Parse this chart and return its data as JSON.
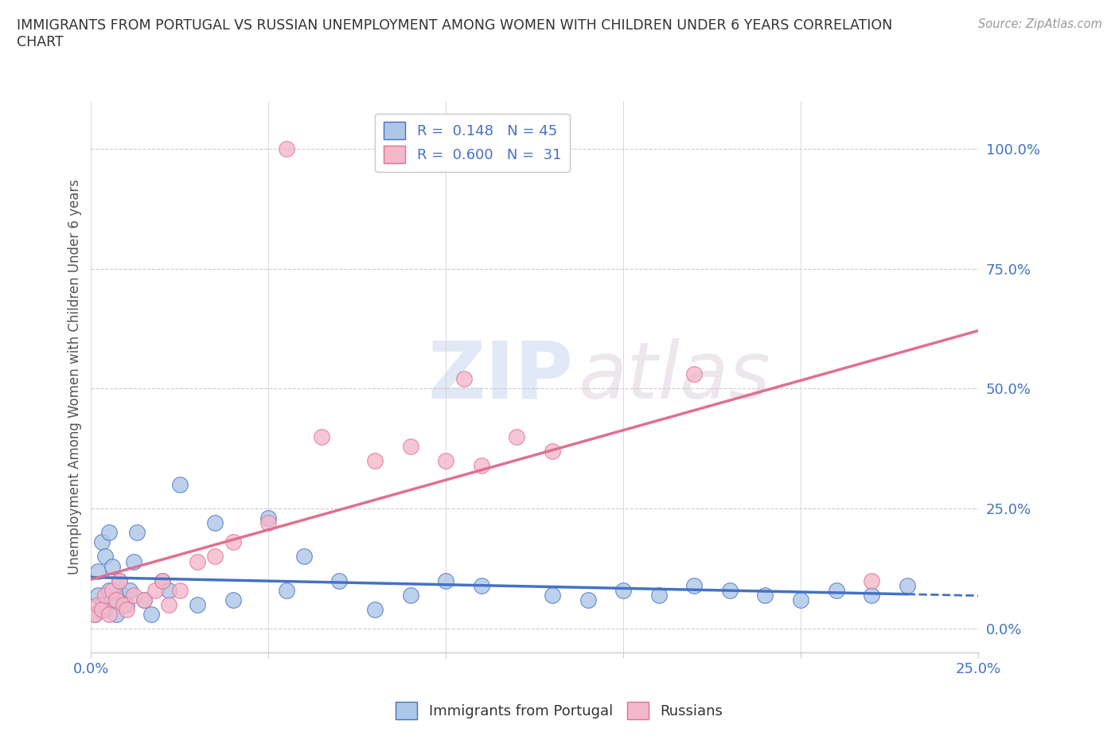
{
  "title": "IMMIGRANTS FROM PORTUGAL VS RUSSIAN UNEMPLOYMENT AMONG WOMEN WITH CHILDREN UNDER 6 YEARS CORRELATION\nCHART",
  "source": "Source: ZipAtlas.com",
  "ylabel": "Unemployment Among Women with Children Under 6 years",
  "xlim": [
    0.0,
    0.25
  ],
  "ylim": [
    -0.05,
    1.1
  ],
  "xticks": [
    0.0,
    0.05,
    0.1,
    0.15,
    0.2,
    0.25
  ],
  "xtick_labels": [
    "0.0%",
    "",
    "",
    "",
    "",
    "25.0%"
  ],
  "ytick_positions": [
    0.0,
    0.25,
    0.5,
    0.75,
    1.0
  ],
  "ytick_labels": [
    "0.0%",
    "25.0%",
    "50.0%",
    "75.0%",
    "100.0%"
  ],
  "blue_color": "#aec6e8",
  "blue_edge_color": "#4472c4",
  "blue_line_color": "#4472c4",
  "pink_color": "#f4b8cb",
  "pink_edge_color": "#e07090",
  "pink_line_color": "#e07090",
  "legend_blue_label": "R =  0.148   N = 45",
  "legend_pink_label": "R =  0.600   N =  31",
  "watermark_zip": "ZIP",
  "watermark_atlas": "atlas",
  "bottom_legend_blue": "Immigrants from Portugal",
  "bottom_legend_pink": "Russians",
  "blue_scatter_x": [
    0.001,
    0.002,
    0.002,
    0.003,
    0.003,
    0.004,
    0.004,
    0.005,
    0.005,
    0.006,
    0.006,
    0.007,
    0.008,
    0.009,
    0.01,
    0.011,
    0.012,
    0.013,
    0.015,
    0.017,
    0.02,
    0.022,
    0.025,
    0.03,
    0.035,
    0.04,
    0.05,
    0.055,
    0.06,
    0.07,
    0.08,
    0.09,
    0.1,
    0.11,
    0.13,
    0.14,
    0.15,
    0.16,
    0.17,
    0.18,
    0.19,
    0.2,
    0.21,
    0.22,
    0.23
  ],
  "blue_scatter_y": [
    0.03,
    0.07,
    0.12,
    0.05,
    0.18,
    0.04,
    0.15,
    0.08,
    0.2,
    0.06,
    0.13,
    0.03,
    0.1,
    0.07,
    0.05,
    0.08,
    0.14,
    0.2,
    0.06,
    0.03,
    0.1,
    0.08,
    0.3,
    0.05,
    0.22,
    0.06,
    0.23,
    0.08,
    0.15,
    0.1,
    0.04,
    0.07,
    0.1,
    0.09,
    0.07,
    0.06,
    0.08,
    0.07,
    0.09,
    0.08,
    0.07,
    0.06,
    0.08,
    0.07,
    0.09
  ],
  "pink_scatter_x": [
    0.001,
    0.002,
    0.003,
    0.004,
    0.005,
    0.006,
    0.007,
    0.008,
    0.009,
    0.01,
    0.012,
    0.015,
    0.018,
    0.02,
    0.022,
    0.025,
    0.03,
    0.035,
    0.04,
    0.05,
    0.055,
    0.065,
    0.08,
    0.09,
    0.1,
    0.105,
    0.11,
    0.12,
    0.13,
    0.17,
    0.22
  ],
  "pink_scatter_y": [
    0.03,
    0.05,
    0.04,
    0.07,
    0.03,
    0.08,
    0.06,
    0.1,
    0.05,
    0.04,
    0.07,
    0.06,
    0.08,
    0.1,
    0.05,
    0.08,
    0.14,
    0.15,
    0.18,
    0.22,
    1.0,
    0.4,
    0.35,
    0.38,
    0.35,
    0.52,
    0.34,
    0.4,
    0.37,
    0.53,
    0.1
  ],
  "grid_color": "#cccccc",
  "bg_color": "#ffffff",
  "title_color": "#333333",
  "axis_label_color": "#4472c4",
  "ylabel_color": "#555555"
}
